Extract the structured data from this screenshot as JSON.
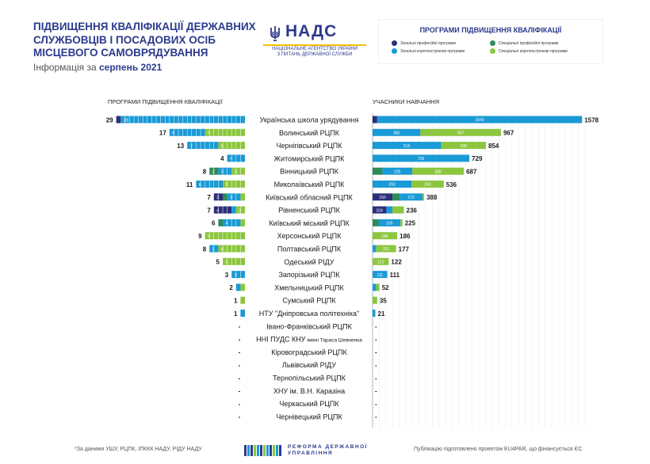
{
  "header": {
    "title_lines": [
      "ПІДВИЩЕННЯ КВАЛІФІКАЦІЇ ДЕРЖАВНИХ",
      "СЛУЖБОВЦІВ І ПОСАДОВИХ ОСІБ",
      "МІСЦЕВОГО САМОВРЯДУВАННЯ"
    ],
    "subtitle_prefix": "Інформація за",
    "subtitle_month": "серпень 2021"
  },
  "logo": {
    "word": "НАДС",
    "agency_line1": "НАЦІОНАЛЬНЕ АГЕНТСТВО УКРАЇНИ",
    "agency_line2": "З ПИТАНЬ ДЕРЖАВНОЇ СЛУЖБИ"
  },
  "legend": {
    "title": "ПРОГРАМИ ПІДВИЩЕННЯ КВАЛІФІКАЦІЇ",
    "items": [
      {
        "label": "Загальні професійні програми",
        "color": "#2b2f7a"
      },
      {
        "label": "Спеціальні професійні програми",
        "color": "#2e8b57"
      },
      {
        "label": "Загальні короткострокові програми",
        "color": "#1a9ad6"
      },
      {
        "label": "Спеціальні короткострокові програми",
        "color": "#8cc63f"
      }
    ]
  },
  "chart_data": {
    "type": "bar",
    "left_title": "ПРОГРАМИ ПІДВИЩЕННЯ КВАЛІФІКАЦІЇ",
    "right_title": "УЧАСНИКИ НАВЧАННЯ",
    "series_keys": [
      "general_prof",
      "special_prof",
      "general_short",
      "special_short"
    ],
    "series_colors": [
      "#2b2f7a",
      "#2e8b57",
      "#1a9ad6",
      "#8cc63f"
    ],
    "right_xlim": [
      0,
      1600
    ],
    "rows": [
      {
        "name": "Українська школа урядування",
        "programs_total": "29",
        "programs": [
          1,
          0,
          28,
          0
        ],
        "participants_total": "1578",
        "participants": [
          35,
          0,
          1543,
          0
        ]
      },
      {
        "name": "Волинський РЦПК",
        "programs_total": "17",
        "programs": [
          0,
          0,
          8,
          9
        ],
        "participants_total": "967",
        "participants": [
          0,
          0,
          360,
          607
        ]
      },
      {
        "name": "Чернігівський РЦПК",
        "programs_total": "13",
        "programs": [
          0,
          0,
          7,
          6
        ],
        "participants_total": "854",
        "participants": [
          0,
          0,
          516,
          338
        ]
      },
      {
        "name": "Житомирський РЦПК",
        "programs_total": "4",
        "programs": [
          0,
          0,
          4,
          0
        ],
        "participants_total": "729",
        "participants": [
          0,
          0,
          729,
          0
        ]
      },
      {
        "name": "Вінницький РЦПК",
        "programs_total": "8",
        "programs": [
          0,
          2,
          3,
          3
        ],
        "participants_total": "687",
        "participants": [
          0,
          74,
          225,
          388
        ]
      },
      {
        "name": "Миколаївський  РЦПК",
        "programs_total": "11",
        "programs": [
          0,
          0,
          6,
          5
        ],
        "participants_total": "536",
        "participants": [
          0,
          0,
          293,
          243
        ]
      },
      {
        "name": "Київський обласний РЦПК",
        "programs_total": "7",
        "programs": [
          2,
          1,
          3,
          1
        ],
        "participants_total": "388",
        "participants": [
          150,
          54,
          172,
          12
        ]
      },
      {
        "name": "Рівненський РЦПК",
        "programs_total": "7",
        "programs": [
          4,
          0,
          1,
          2
        ],
        "participants_total": "236",
        "participants": [
          104,
          0,
          45,
          87
        ]
      },
      {
        "name": "Київський міський РЦПК",
        "programs_total": "6",
        "programs": [
          0,
          1,
          4,
          1
        ],
        "participants_total": "225",
        "participants": [
          0,
          45,
          165,
          15
        ]
      },
      {
        "name": "Херсонський РЦПК",
        "programs_total": "9",
        "programs": [
          0,
          0,
          0,
          9
        ],
        "participants_total": "186",
        "participants": [
          0,
          0,
          0,
          186
        ]
      },
      {
        "name": "Полтавський РЦПК",
        "programs_total": "8",
        "programs": [
          0,
          0,
          2,
          6
        ],
        "participants_total": "177",
        "participants": [
          0,
          0,
          26,
          151
        ]
      },
      {
        "name": "Одеський РІДУ",
        "programs_total": "5",
        "programs": [
          0,
          0,
          0,
          5
        ],
        "participants_total": "122",
        "participants": [
          0,
          0,
          0,
          122
        ]
      },
      {
        "name": "Запорізький РЦПК",
        "programs_total": "3",
        "programs": [
          0,
          0,
          3,
          0
        ],
        "participants_total": "111",
        "participants": [
          0,
          0,
          111,
          0
        ]
      },
      {
        "name": "Хмельницький РЦПК",
        "programs_total": "2",
        "programs": [
          0,
          0,
          1,
          1
        ],
        "participants_total": "52",
        "participants": [
          0,
          0,
          27,
          25
        ]
      },
      {
        "name": "Сумський РЦПК",
        "programs_total": "1",
        "programs": [
          0,
          0,
          0,
          1
        ],
        "participants_total": "35",
        "participants": [
          0,
          0,
          0,
          35
        ]
      },
      {
        "name": "НТУ \"Дніпровська політехніка\"",
        "programs_total": "1",
        "programs": [
          0,
          0,
          1,
          0
        ],
        "participants_total": "21",
        "participants": [
          0,
          0,
          21,
          0
        ]
      },
      {
        "name": "Івано-Франківський РЦПК",
        "programs_total": "-",
        "programs": [
          0,
          0,
          0,
          0
        ],
        "participants_total": "-",
        "participants": [
          0,
          0,
          0,
          0
        ]
      },
      {
        "name": "ННІ ПУДС КНУ",
        "name_small": "імені Тараса Шевченка",
        "programs_total": "-",
        "programs": [
          0,
          0,
          0,
          0
        ],
        "participants_total": "-",
        "participants": [
          0,
          0,
          0,
          0
        ]
      },
      {
        "name": "Кіровоградський РЦПК",
        "programs_total": "-",
        "programs": [
          0,
          0,
          0,
          0
        ],
        "participants_total": "-",
        "participants": [
          0,
          0,
          0,
          0
        ]
      },
      {
        "name": "Львівський РІДУ",
        "programs_total": "-",
        "programs": [
          0,
          0,
          0,
          0
        ],
        "participants_total": "-",
        "participants": [
          0,
          0,
          0,
          0
        ]
      },
      {
        "name": "Тернопільський РЦПК",
        "programs_total": "-",
        "programs": [
          0,
          0,
          0,
          0
        ],
        "participants_total": "-",
        "participants": [
          0,
          0,
          0,
          0
        ]
      },
      {
        "name": "ХНУ ім. В.Н. Каразіна",
        "programs_total": "-",
        "programs": [
          0,
          0,
          0,
          0
        ],
        "participants_total": "-",
        "participants": [
          0,
          0,
          0,
          0
        ]
      },
      {
        "name": "Черкаський РЦПК",
        "programs_total": "-",
        "programs": [
          0,
          0,
          0,
          0
        ],
        "participants_total": "-",
        "participants": [
          0,
          0,
          0,
          0
        ]
      },
      {
        "name": "Чернівецький РЦПК",
        "programs_total": "-",
        "programs": [
          0,
          0,
          0,
          0
        ],
        "participants_total": "-",
        "participants": [
          0,
          0,
          0,
          0
        ]
      }
    ]
  },
  "footer": {
    "note": "*За даними УШУ, РЦПК, ІПККК НАДУ, РІДУ НАДУ",
    "reform_line1": "РЕФОРМА ДЕРЖАВНОЇ",
    "reform_line2": "УПРАВЛІННЯ",
    "publication": "Публікацію підготовлено проектом EU4PAR, що фінансується ЄС"
  }
}
